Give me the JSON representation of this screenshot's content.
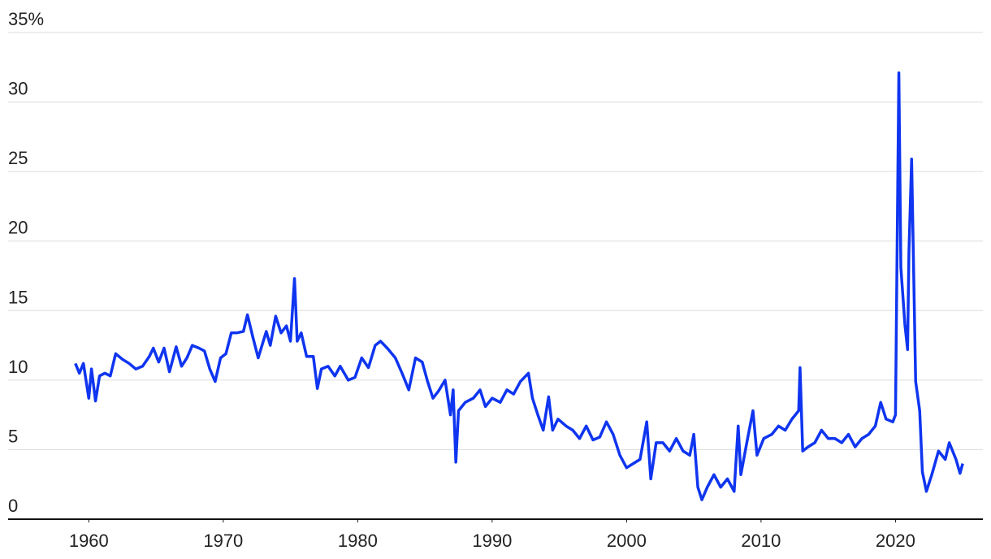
{
  "chart_data": {
    "type": "line",
    "x": [
      1959.0,
      1959.3,
      1959.6,
      1960.0,
      1960.2,
      1960.5,
      1960.8,
      1961.2,
      1961.6,
      1962.0,
      1962.5,
      1963.0,
      1963.5,
      1964.0,
      1964.5,
      1964.8,
      1965.2,
      1965.6,
      1966.0,
      1966.5,
      1966.9,
      1967.3,
      1967.7,
      1968.2,
      1968.6,
      1969.0,
      1969.4,
      1969.8,
      1970.2,
      1970.6,
      1971.0,
      1971.5,
      1971.8,
      1972.2,
      1972.6,
      1973.2,
      1973.5,
      1973.9,
      1974.3,
      1974.7,
      1975.0,
      1975.3,
      1975.5,
      1975.8,
      1976.2,
      1976.7,
      1977.0,
      1977.3,
      1977.8,
      1978.3,
      1978.7,
      1979.3,
      1979.8,
      1980.3,
      1980.8,
      1981.3,
      1981.7,
      1982.2,
      1982.8,
      1983.3,
      1983.8,
      1984.3,
      1984.8,
      1985.2,
      1985.6,
      1986.0,
      1986.5,
      1986.9,
      1987.1,
      1987.3,
      1987.5,
      1988.0,
      1988.6,
      1989.1,
      1989.5,
      1990.0,
      1990.6,
      1991.1,
      1991.6,
      1992.1,
      1992.7,
      1993.0,
      1993.4,
      1993.8,
      1994.2,
      1994.5,
      1994.9,
      1995.5,
      1996.0,
      1996.5,
      1997.0,
      1997.5,
      1998.0,
      1998.5,
      1999.0,
      1999.5,
      2000.0,
      2000.5,
      2001.0,
      2001.5,
      2001.8,
      2002.2,
      2002.7,
      2003.2,
      2003.7,
      2004.2,
      2004.7,
      2005.0,
      2005.3,
      2005.6,
      2006.0,
      2006.5,
      2007.0,
      2007.5,
      2008.0,
      2008.3,
      2008.5,
      2009.0,
      2009.4,
      2009.7,
      2010.2,
      2010.8,
      2011.3,
      2011.8,
      2012.3,
      2012.8,
      2012.9,
      2013.1,
      2013.5,
      2014.0,
      2014.5,
      2015.0,
      2015.5,
      2016.0,
      2016.5,
      2017.0,
      2017.5,
      2018.0,
      2018.5,
      2018.9,
      2019.3,
      2019.8,
      2020.0,
      2020.25,
      2020.4,
      2020.7,
      2020.9,
      2021.0,
      2021.2,
      2021.5,
      2021.8,
      2022.0,
      2022.3,
      2022.7,
      2023.2,
      2023.7,
      2024.0,
      2024.5,
      2024.8,
      2025.0
    ],
    "series": [
      {
        "color": "#0f35f0",
        "values": [
          11.2,
          10.5,
          11.2,
          8.7,
          10.8,
          8.5,
          10.3,
          10.5,
          10.3,
          11.9,
          11.5,
          11.2,
          10.8,
          11.0,
          11.7,
          12.3,
          11.3,
          12.3,
          10.6,
          12.4,
          11.0,
          11.6,
          12.5,
          12.3,
          12.1,
          10.8,
          9.9,
          11.6,
          11.9,
          13.4,
          13.4,
          13.5,
          14.7,
          13.1,
          11.6,
          13.5,
          12.5,
          14.6,
          13.4,
          13.9,
          12.8,
          17.3,
          12.8,
          13.4,
          11.7,
          11.7,
          9.4,
          10.8,
          11.0,
          10.3,
          11.0,
          10.0,
          10.2,
          11.6,
          10.9,
          12.5,
          12.8,
          12.3,
          11.6,
          10.5,
          9.3,
          11.6,
          11.3,
          9.9,
          8.7,
          9.2,
          10.0,
          7.5,
          9.3,
          4.1,
          7.8,
          8.4,
          8.7,
          9.3,
          8.1,
          8.7,
          8.4,
          9.3,
          9.0,
          9.9,
          10.5,
          8.7,
          7.5,
          6.4,
          8.8,
          6.4,
          7.2,
          6.7,
          6.4,
          5.8,
          6.7,
          5.7,
          5.9,
          7.0,
          6.1,
          4.6,
          3.7,
          4.0,
          4.3,
          7.0,
          2.9,
          5.5,
          5.5,
          4.9,
          5.8,
          4.9,
          4.6,
          6.1,
          2.3,
          1.4,
          2.3,
          3.2,
          2.3,
          2.9,
          2.0,
          6.7,
          3.2,
          5.8,
          7.8,
          4.6,
          5.8,
          6.1,
          6.7,
          6.4,
          7.2,
          7.8,
          10.9,
          4.9,
          5.2,
          5.5,
          6.4,
          5.8,
          5.8,
          5.5,
          6.1,
          5.2,
          5.8,
          6.1,
          6.7,
          8.4,
          7.2,
          7.0,
          7.5,
          32.1,
          18.1,
          14.0,
          12.2,
          19.2,
          25.9,
          9.9,
          7.8,
          3.4,
          2.0,
          3.2,
          4.9,
          4.3,
          5.5,
          4.3,
          3.3,
          4.0
        ]
      }
    ],
    "xlim": [
      1954,
      2026.5
    ],
    "xticks": [
      1960,
      1970,
      1980,
      1990,
      2000,
      2010,
      2020
    ],
    "ylim": [
      0,
      35
    ],
    "yticks": [
      0,
      5,
      10,
      15,
      20,
      25,
      30,
      {
        "value": 35,
        "label": "35%"
      }
    ],
    "grid": true
  }
}
